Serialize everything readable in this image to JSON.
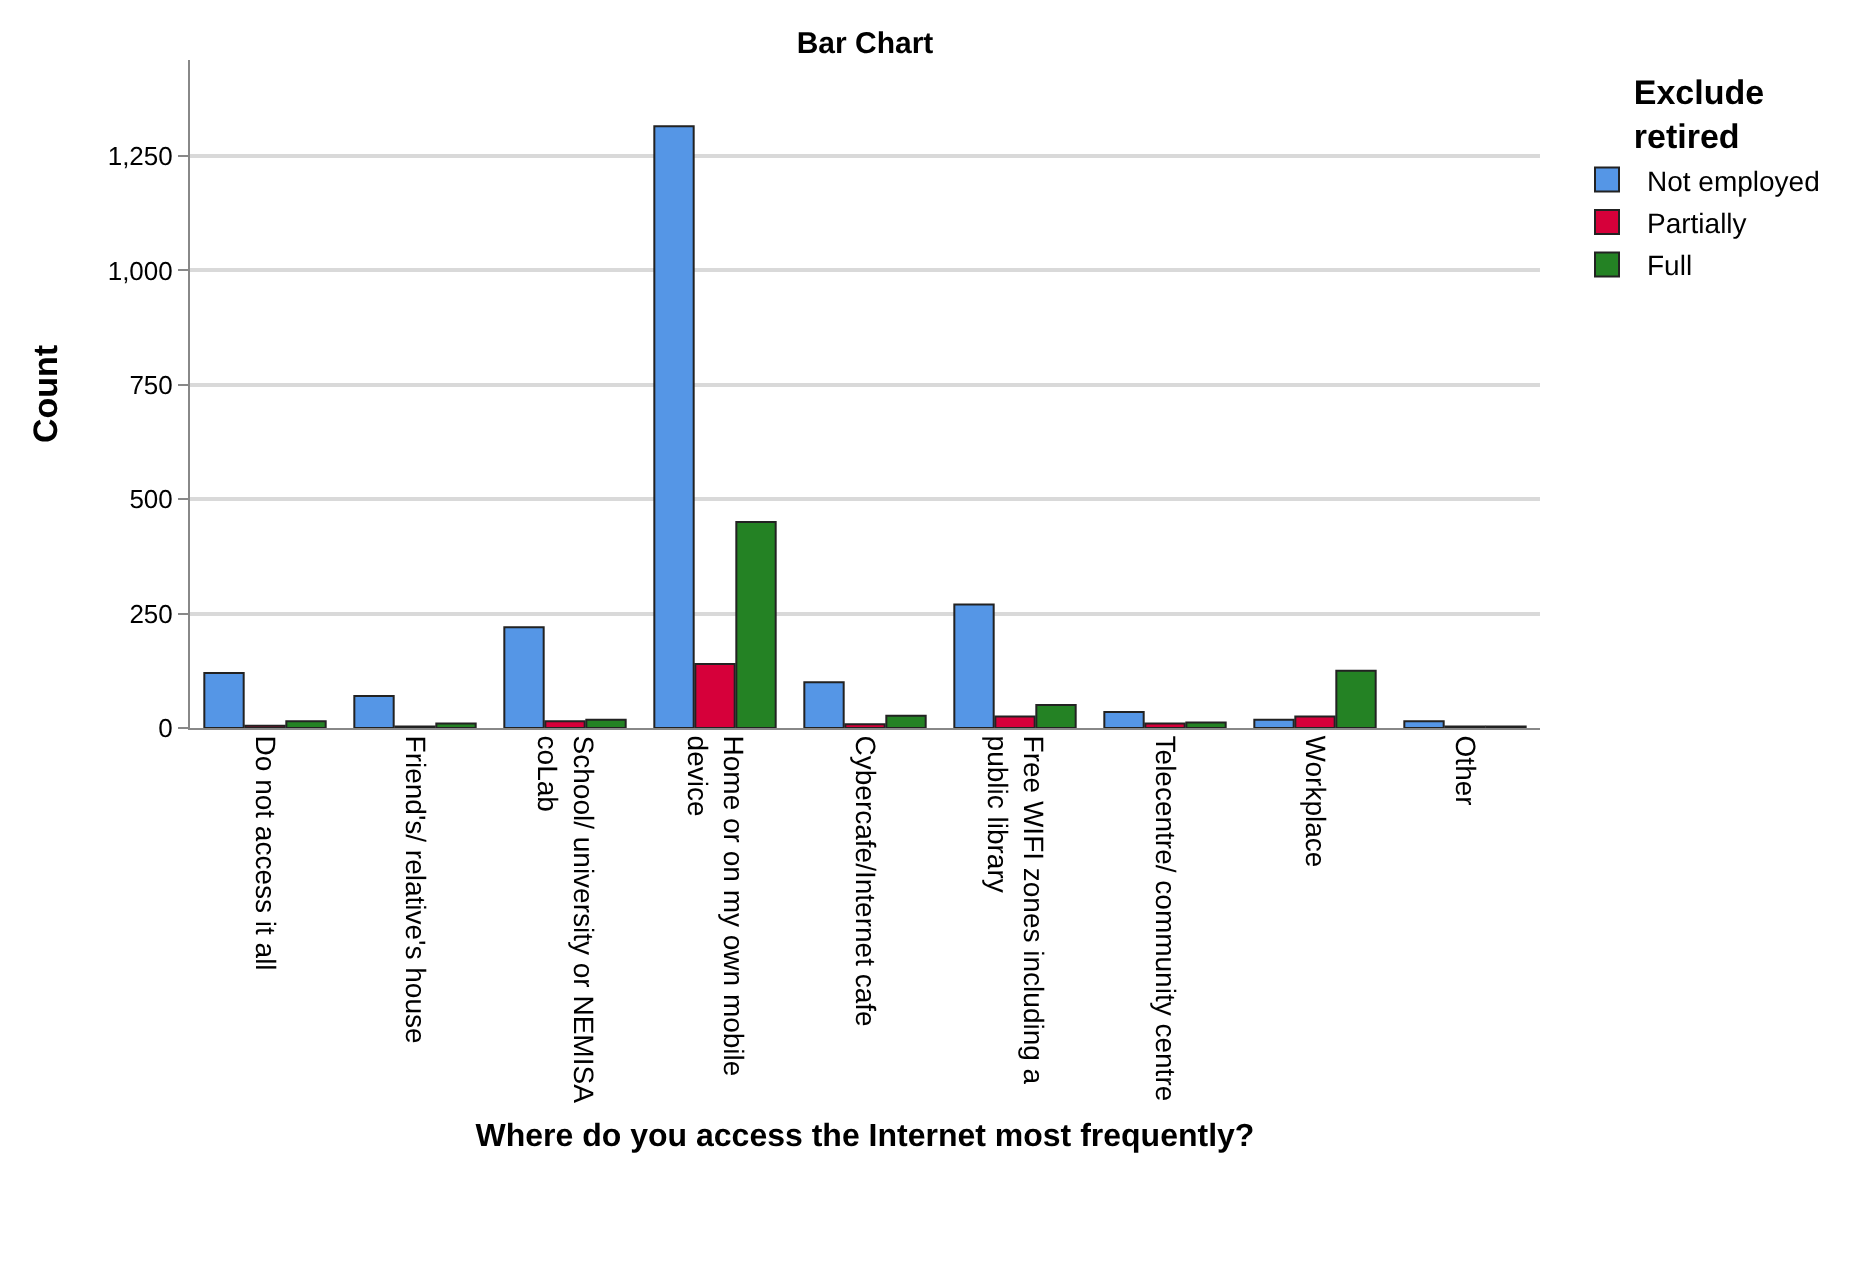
{
  "chart_data": {
    "type": "bar",
    "title": "Bar Chart",
    "xlabel": "Where do you access the Internet most frequently?",
    "ylabel": "Count",
    "legend_title": "Exclude retired",
    "categories": [
      "Do not access it all",
      "Friend's/ relative's house",
      "School/ university or NEMISA coLab",
      "Home or on my own mobile device",
      "Cybercafe/Internet cafe",
      "Free WIFI zones including a public library",
      "Telecentre/ community centre",
      "Workplace",
      "Other"
    ],
    "series": [
      {
        "name": "Not employed",
        "color": "#5596e6",
        "values": [
          120,
          70,
          220,
          1315,
          100,
          270,
          35,
          18,
          15
        ]
      },
      {
        "name": "Partially",
        "color": "#d6003a",
        "values": [
          5,
          3,
          15,
          140,
          8,
          25,
          10,
          25,
          3
        ]
      },
      {
        "name": "Full",
        "color": "#248224",
        "values": [
          15,
          10,
          18,
          450,
          27,
          50,
          12,
          125,
          3
        ]
      }
    ],
    "ylim": [
      0,
      1460
    ],
    "yticks": [
      {
        "value": 0,
        "label": "0"
      },
      {
        "value": 250,
        "label": "250"
      },
      {
        "value": 500,
        "label": "500"
      },
      {
        "value": 750,
        "label": "750"
      },
      {
        "value": 1000,
        "label": "1,000"
      },
      {
        "value": 1250,
        "label": "1,250"
      }
    ],
    "grid": "y",
    "legend": "top right"
  }
}
